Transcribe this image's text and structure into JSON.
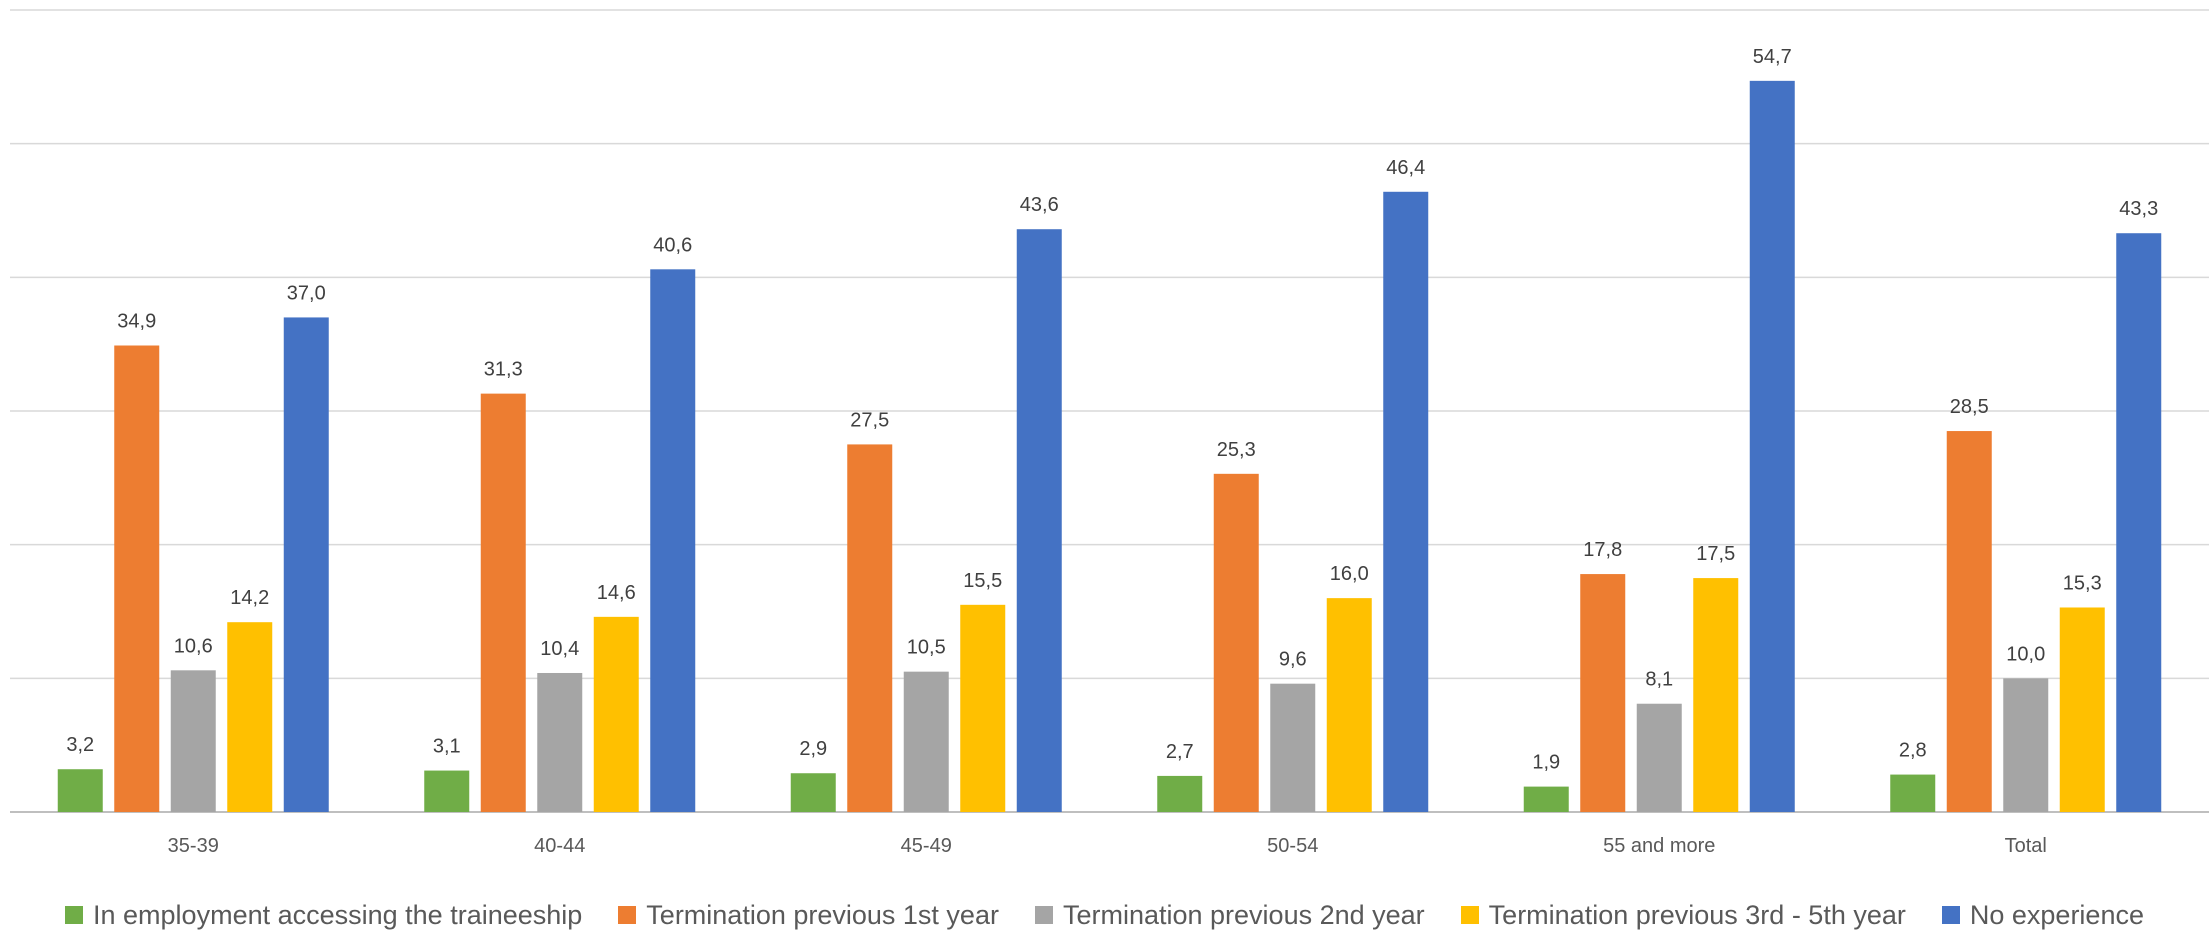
{
  "chart_data": {
    "type": "bar",
    "title": "",
    "xlabel": "",
    "ylabel": "",
    "ylim": [
      0,
      60
    ],
    "grid": true,
    "legend_position": "bottom",
    "categories": [
      "35-39",
      "40-44",
      "45-49",
      "50-54",
      "55 and more",
      "Total"
    ],
    "series": [
      {
        "name": "In employment accessing the traineeship",
        "color": "#70AD47",
        "values": [
          3.2,
          3.1,
          2.9,
          2.7,
          1.9,
          2.8
        ],
        "labels": [
          "3,2",
          "3,1",
          "2,9",
          "2,7",
          "1,9",
          "2,8"
        ]
      },
      {
        "name": "Termination previous 1st year",
        "color": "#ED7D31",
        "values": [
          34.9,
          31.3,
          27.5,
          25.3,
          17.8,
          28.5
        ],
        "labels": [
          "34,9",
          "31,3",
          "27,5",
          "25,3",
          "17,8",
          "28,5"
        ]
      },
      {
        "name": "Termination previous 2nd year",
        "color": "#A5A5A5",
        "values": [
          10.6,
          10.4,
          10.5,
          9.6,
          8.1,
          10.0
        ],
        "labels": [
          "10,6",
          "10,4",
          "10,5",
          "9,6",
          "8,1",
          "10,0"
        ]
      },
      {
        "name": "Termination previous 3rd - 5th year",
        "color": "#FFC000",
        "values": [
          14.2,
          14.6,
          15.5,
          16.0,
          17.5,
          15.3
        ],
        "labels": [
          "14,2",
          "14,6",
          "15,5",
          "16,0",
          "17,5",
          "15,3"
        ]
      },
      {
        "name": "No experience",
        "color": "#4472C4",
        "values": [
          37.0,
          40.6,
          43.6,
          46.4,
          54.7,
          43.3
        ],
        "labels": [
          "37,0",
          "40,6",
          "43,6",
          "46,4",
          "54,7",
          "43,3"
        ]
      }
    ]
  }
}
